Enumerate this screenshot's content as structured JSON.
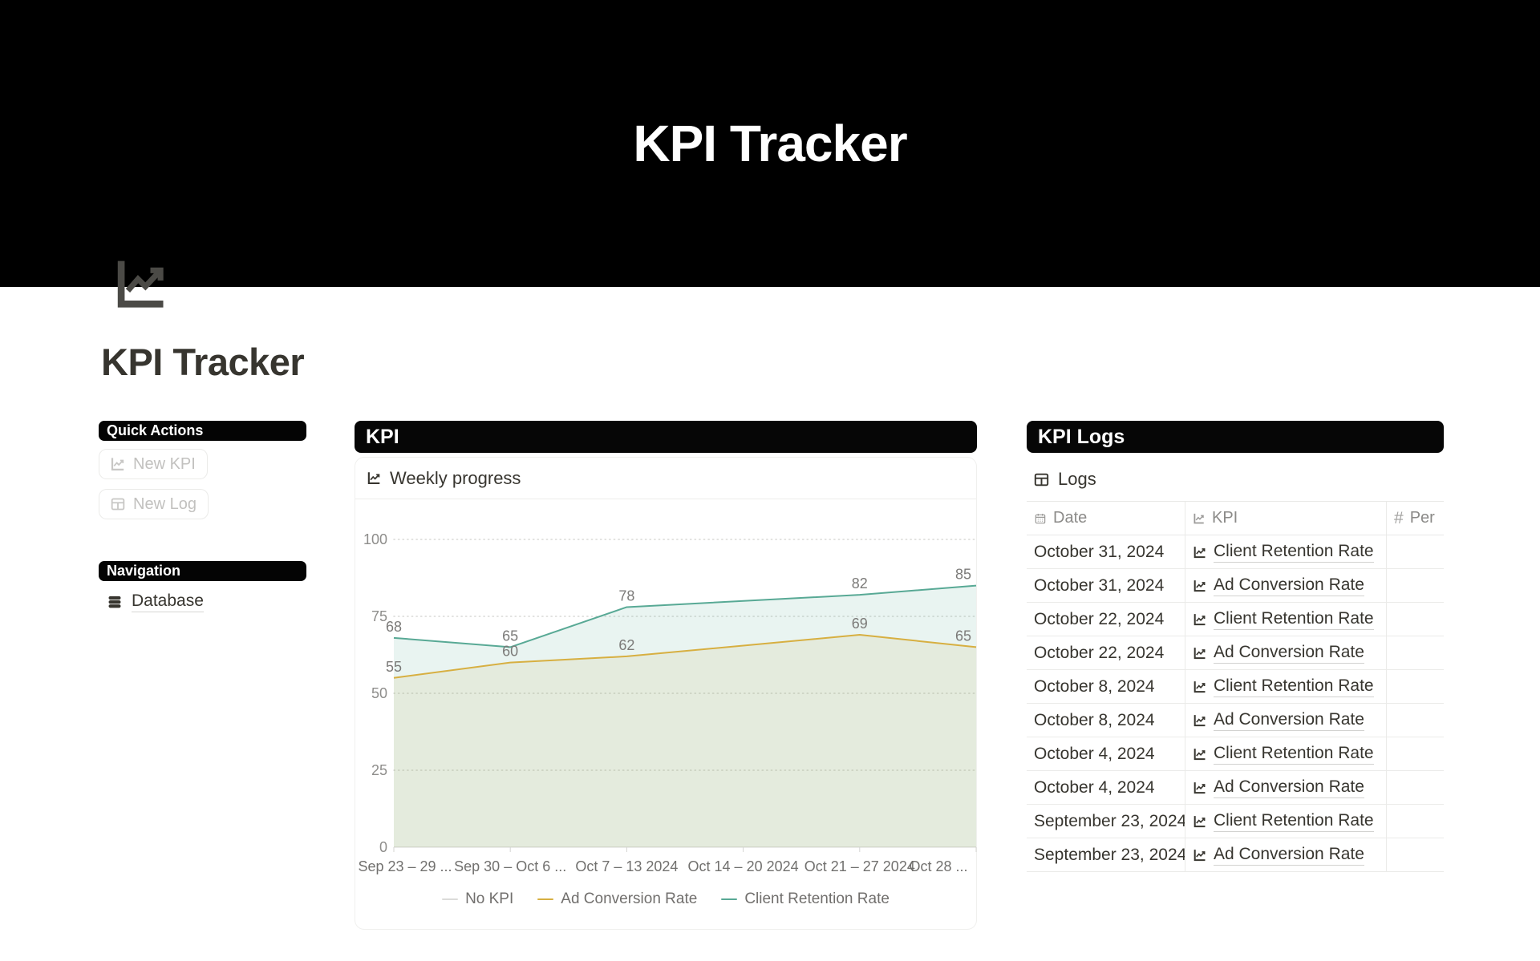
{
  "banner": {
    "title": "KPI Tracker"
  },
  "page": {
    "title": "KPI Tracker"
  },
  "sidebar": {
    "quick_actions_header": "Quick Actions",
    "new_kpi_label": "New KPI",
    "new_log_label": "New Log",
    "navigation_header": "Navigation",
    "database_label": "Database"
  },
  "kpi_section": {
    "header": "KPI"
  },
  "logs_section": {
    "header": "KPI Logs",
    "table_title": "Logs",
    "columns": [
      {
        "label": "Date",
        "icon": "calendar-icon"
      },
      {
        "label": "KPI",
        "icon": "chart-line-icon"
      },
      {
        "label": "Per",
        "icon": "hash-icon"
      }
    ],
    "rows": [
      {
        "date": "October 31, 2024",
        "kpi": "Client Retention Rate"
      },
      {
        "date": "October 31, 2024",
        "kpi": "Ad Conversion Rate"
      },
      {
        "date": "October 22, 2024",
        "kpi": "Client Retention Rate"
      },
      {
        "date": "October 22, 2024",
        "kpi": "Ad Conversion Rate"
      },
      {
        "date": "October 8, 2024",
        "kpi": "Client Retention Rate"
      },
      {
        "date": "October 8, 2024",
        "kpi": "Ad Conversion Rate"
      },
      {
        "date": "October 4, 2024",
        "kpi": "Client Retention Rate"
      },
      {
        "date": "October 4, 2024",
        "kpi": "Ad Conversion Rate"
      },
      {
        "date": "September 23, 2024",
        "kpi": "Client Retention Rate"
      },
      {
        "date": "September 23, 2024",
        "kpi": "Ad Conversion Rate"
      }
    ]
  },
  "chart_data": {
    "type": "area",
    "title": "Weekly progress",
    "x_labels": [
      "Sep 23 – 29 ...",
      "Sep 30 – Oct 6 ...",
      "Oct 7 – 13 2024",
      "Oct 14 – 20 2024",
      "Oct 21 – 27 2024",
      "Oct 28 ..."
    ],
    "y_ticks": [
      0,
      25,
      50,
      75,
      100
    ],
    "ylim": [
      0,
      100
    ],
    "grid": "dotted-horizontal",
    "legend_position": "bottom",
    "point_labels": true,
    "series": [
      {
        "name": "No KPI",
        "color": "#dbdbd9",
        "fill": null,
        "values": [
          null,
          null,
          null,
          null,
          null,
          null
        ]
      },
      {
        "name": "Ad Conversion Rate",
        "color": "#d7af41",
        "fill": "rgba(215,175,65,0.12)",
        "values": [
          55,
          60,
          62,
          null,
          69,
          65
        ]
      },
      {
        "name": "Client Retention Rate",
        "color": "#58a995",
        "fill": "rgba(88,169,149,0.13)",
        "values": [
          68,
          65,
          78,
          null,
          82,
          85
        ]
      }
    ]
  }
}
